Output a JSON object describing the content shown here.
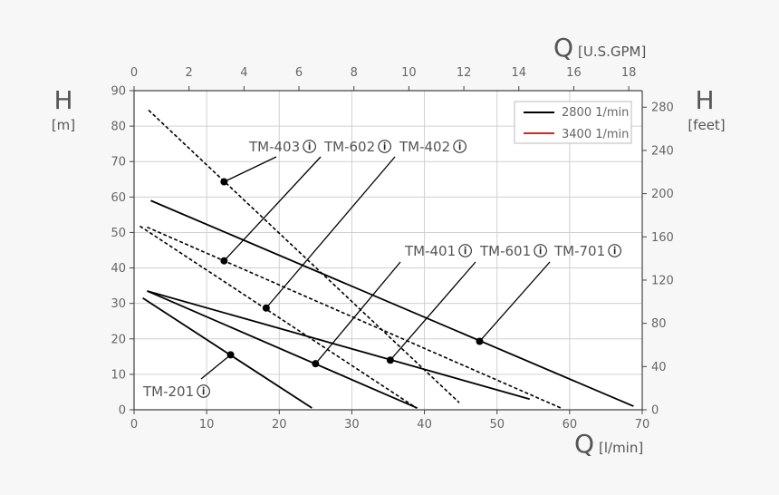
{
  "chart_data": {
    "type": "line",
    "title": "",
    "x_axis": {
      "symbol": "Q",
      "unit": "[l/min]",
      "ticks": [
        0,
        10,
        20,
        30,
        40,
        50,
        60,
        70
      ],
      "range": [
        0,
        70
      ]
    },
    "x2_axis": {
      "symbol": "Q",
      "unit": "[U.S.GPM]",
      "ticks": [
        0,
        2,
        4,
        6,
        8,
        10,
        12,
        14,
        16,
        18
      ],
      "range": [
        0,
        18.49
      ]
    },
    "y_axis": {
      "symbol": "H",
      "unit": "[m]",
      "ticks": [
        0,
        10,
        20,
        30,
        40,
        50,
        60,
        70,
        80,
        90
      ],
      "range": [
        0,
        90
      ]
    },
    "y2_axis": {
      "symbol": "H",
      "unit": "[feet]",
      "ticks": [
        0,
        40,
        80,
        120,
        160,
        200,
        240,
        280
      ],
      "range": [
        0,
        295.3
      ]
    },
    "grid": true,
    "legend": {
      "position": "top-right",
      "entries": [
        {
          "label": "2800 1/min",
          "color": "#000000"
        },
        {
          "label": "3400 1/min",
          "color": "#d62728"
        }
      ]
    },
    "series": [
      {
        "name": "TM-201",
        "style": "solid",
        "x": [
          1.2,
          24.5
        ],
        "y": [
          31.5,
          0.5
        ],
        "marker": [
          13.3,
          15.5
        ]
      },
      {
        "name": "TM-401",
        "style": "solid",
        "x": [
          1.8,
          39.0
        ],
        "y": [
          33.5,
          0.5
        ],
        "marker": [
          25.0,
          13.0
        ]
      },
      {
        "name": "TM-601",
        "style": "solid",
        "x": [
          1.8,
          54.5
        ],
        "y": [
          33.5,
          3.0
        ],
        "marker": [
          35.3,
          14.0
        ]
      },
      {
        "name": "TM-701",
        "style": "solid",
        "x": [
          2.3,
          68.8
        ],
        "y": [
          59.0,
          1.0
        ],
        "marker": [
          47.6,
          19.3
        ]
      },
      {
        "name": "TM-402",
        "style": "dashed",
        "x": [
          0.8,
          38.9
        ],
        "y": [
          51.8,
          0.5
        ],
        "marker": [
          18.2,
          28.7
        ]
      },
      {
        "name": "TM-602",
        "style": "dashed",
        "x": [
          1.8,
          58.8
        ],
        "y": [
          51.5,
          0.5
        ],
        "marker": [
          12.4,
          42.0
        ]
      },
      {
        "name": "TM-403",
        "style": "dashed",
        "x": [
          2.0,
          44.8
        ],
        "y": [
          84.5,
          2.0
        ],
        "marker": [
          12.4,
          64.3
        ]
      }
    ],
    "annotations": [
      {
        "text": "TM-403",
        "for": "TM-403"
      },
      {
        "text": "TM-602",
        "for": "TM-602"
      },
      {
        "text": "TM-402",
        "for": "TM-402"
      },
      {
        "text": "TM-401",
        "for": "TM-401"
      },
      {
        "text": "TM-601",
        "for": "TM-601"
      },
      {
        "text": "TM-701",
        "for": "TM-701"
      },
      {
        "text": "TM-201",
        "for": "TM-201"
      }
    ],
    "info_symbol": "ⓘ"
  }
}
